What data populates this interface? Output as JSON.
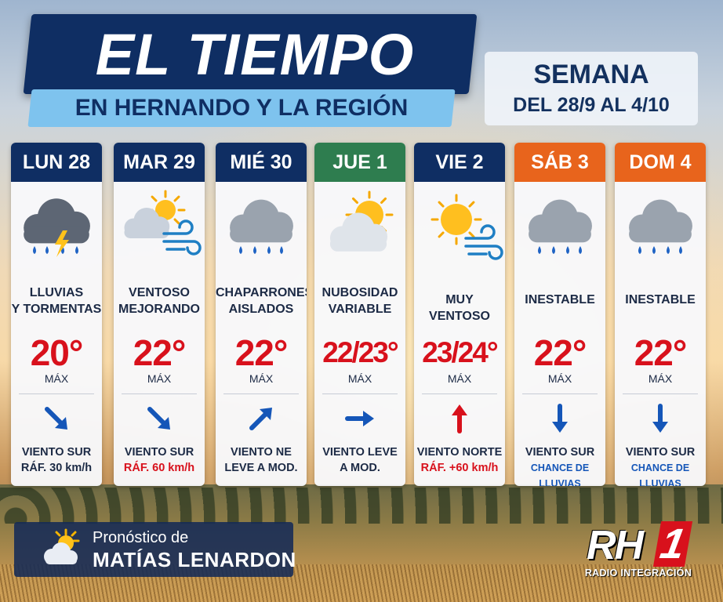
{
  "header": {
    "title": "EL TIEMPO",
    "subtitle": "EN HERNANDO Y LA REGIÓN",
    "week_label": "SEMANA",
    "week_range": "DEL 28/9 AL 4/10"
  },
  "colors": {
    "navy": "#0f2e63",
    "green": "#2e7d4f",
    "orange": "#e8641c",
    "red": "#d8111c",
    "arrow_blue": "#1556b8"
  },
  "days": [
    {
      "label": "LUN 28",
      "header_color": "#0f2e63",
      "icon": "storm-cloud-icon",
      "condition_line1": "LLUVIAS",
      "condition_line2": "Y TORMENTAS",
      "temp": "20°",
      "max_label": "MÁX",
      "wind_arrow": "arrow-down-right",
      "wind_line1": "VIENTO SUR",
      "wind_line2": "RÁF. 30 km/h",
      "wind_line2_style": "normal"
    },
    {
      "label": "MAR 29",
      "header_color": "#0f2e63",
      "icon": "sun-cloud-wind-icon",
      "condition_line1": "VENTOSO",
      "condition_line2": "MEJORANDO",
      "temp": "22°",
      "max_label": "MÁX",
      "wind_arrow": "arrow-down-right",
      "wind_line1": "VIENTO SUR",
      "wind_line2": "RÁF. 60 km/h",
      "wind_line2_style": "red"
    },
    {
      "label": "MIÉ 30",
      "header_color": "#0f2e63",
      "icon": "rain-cloud-icon",
      "condition_line1": "CHAPARRONES",
      "condition_line2": "AISLADOS",
      "temp": "22°",
      "max_label": "MÁX",
      "wind_arrow": "arrow-up-right",
      "wind_line1": "VIENTO NE",
      "wind_line2": "LEVE A MOD.",
      "wind_line2_style": "normal"
    },
    {
      "label": "JUE 1",
      "header_color": "#2e7d4f",
      "icon": "partly-cloudy-icon",
      "condition_line1": "NUBOSIDAD",
      "condition_line2": "VARIABLE",
      "temp": "22/23°",
      "max_label": "MÁX",
      "wind_arrow": "arrow-right",
      "wind_line1": "VIENTO LEVE",
      "wind_line2": "A MOD.",
      "wind_line2_style": "normal"
    },
    {
      "label": "VIE 2",
      "header_color": "#0f2e63",
      "icon": "sun-wind-icon",
      "condition_line1": "MUY VENTOSO",
      "condition_line2": "",
      "temp": "23/24°",
      "max_label": "MÁX",
      "wind_arrow": "arrow-up-red",
      "wind_line1": "VIENTO NORTE",
      "wind_line2": "RÁF. +60 km/h",
      "wind_line2_style": "red"
    },
    {
      "label": "SÁB 3",
      "header_color": "#e8641c",
      "icon": "rain-cloud-icon",
      "condition_line1": "INESTABLE",
      "condition_line2": "",
      "temp": "22°",
      "max_label": "MÁX",
      "wind_arrow": "arrow-down",
      "wind_line1": "VIENTO SUR",
      "wind_line2": "CHANCE DE LLUVIAS",
      "wind_line2_style": "blue"
    },
    {
      "label": "DOM 4",
      "header_color": "#e8641c",
      "icon": "rain-cloud-icon",
      "condition_line1": "INESTABLE",
      "condition_line2": "",
      "temp": "22°",
      "max_label": "MÁX",
      "wind_arrow": "arrow-down",
      "wind_line1": "VIENTO SUR",
      "wind_line2": "CHANCE DE LLUVIAS",
      "wind_line2_style": "blue"
    }
  ],
  "credit": {
    "line1": "Pronóstico de",
    "line2": "MATÍAS LENARDON"
  },
  "logo": {
    "rh": "RH",
    "one": "1",
    "subtitle": "RADIO INTEGRACIÓN"
  }
}
